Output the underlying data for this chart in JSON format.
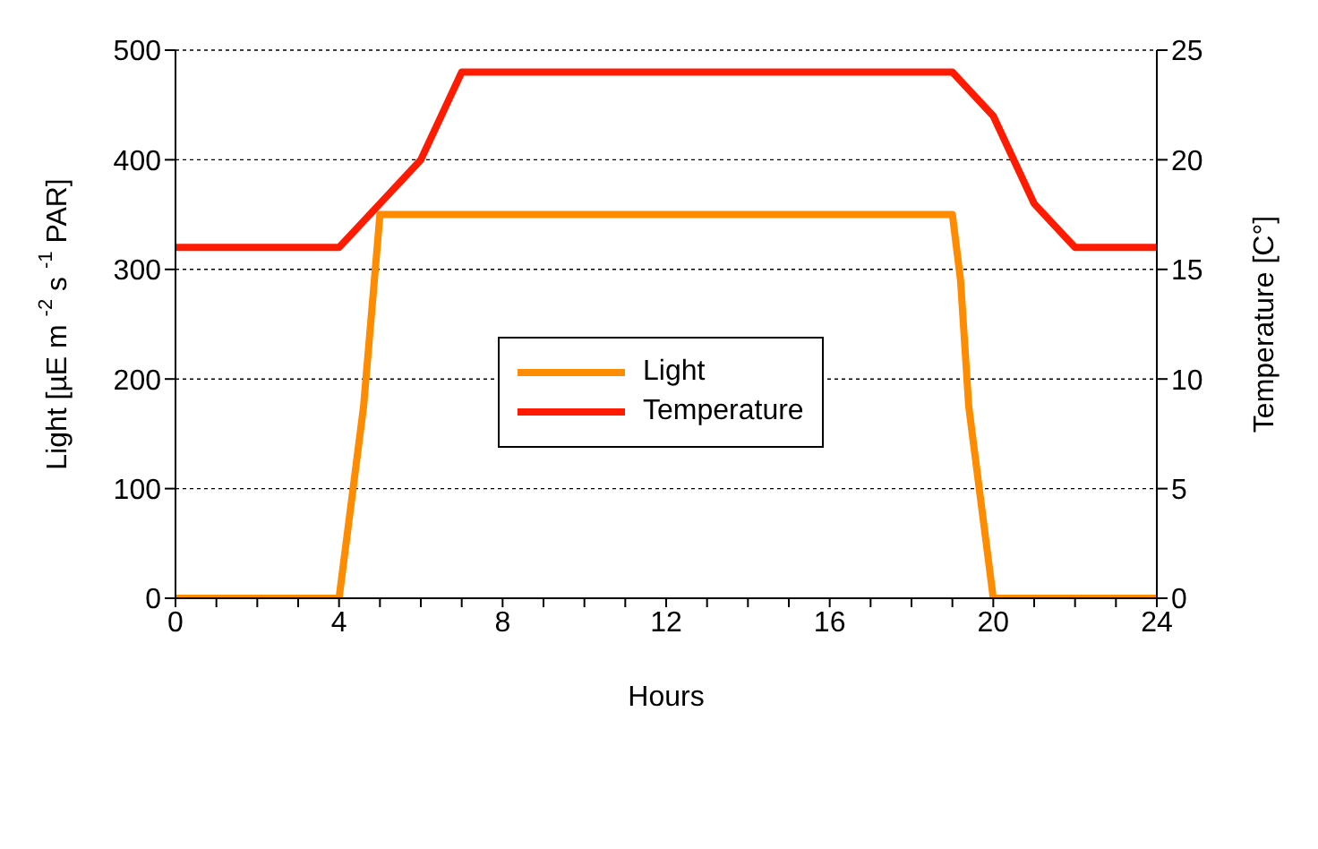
{
  "chart_data": {
    "type": "line",
    "xlabel": "Hours",
    "ylabel": "Light [µE m $^{-2}$ s $^{-1}$ PAR]",
    "y2label": "Temperature [C°]",
    "xlim": [
      0,
      24
    ],
    "xticks": [
      0,
      {
        "value": 1,
        "label": null
      },
      {
        "value": 2,
        "label": null
      },
      {
        "value": 3,
        "label": null
      },
      4,
      {
        "value": 5,
        "label": null
      },
      {
        "value": 6,
        "label": null
      },
      {
        "value": 7,
        "label": null
      },
      8,
      {
        "value": 9,
        "label": null
      },
      {
        "value": 10,
        "label": null
      },
      {
        "value": 11,
        "label": null
      },
      12,
      {
        "value": 13,
        "label": null
      },
      {
        "value": 14,
        "label": null
      },
      {
        "value": 15,
        "label": null
      },
      16,
      {
        "value": 17,
        "label": null
      },
      {
        "value": 18,
        "label": null
      },
      {
        "value": 19,
        "label": null
      },
      20,
      {
        "value": 21,
        "label": null
      },
      {
        "value": 22,
        "label": null
      },
      {
        "value": 23,
        "label": null
      },
      24
    ],
    "ylim": [
      0,
      500
    ],
    "yticks": [
      0,
      100,
      200,
      300,
      400,
      500
    ],
    "y2lim": [
      0,
      25
    ],
    "y2ticks": [
      0,
      5,
      10,
      15,
      20,
      25
    ],
    "grid": "y",
    "legend": "center",
    "marker": "none",
    "line_style": "solid",
    "series": [
      {
        "name": "Light",
        "color": "#ff8c00",
        "x": [
          0,
          4,
          4.6,
          5,
          19,
          19.2,
          19.4,
          20,
          24
        ],
        "values": [
          0,
          0,
          175,
          350,
          350,
          290,
          175,
          0,
          0
        ]
      },
      {
        "name": "Temperature",
        "color": "#ff1a00",
        "axis": "y2",
        "x": [
          0,
          4,
          5,
          6,
          7,
          19,
          20,
          21,
          22,
          24
        ],
        "values": [
          16,
          16,
          18,
          20,
          24,
          24,
          22,
          18,
          16,
          16
        ]
      }
    ]
  }
}
